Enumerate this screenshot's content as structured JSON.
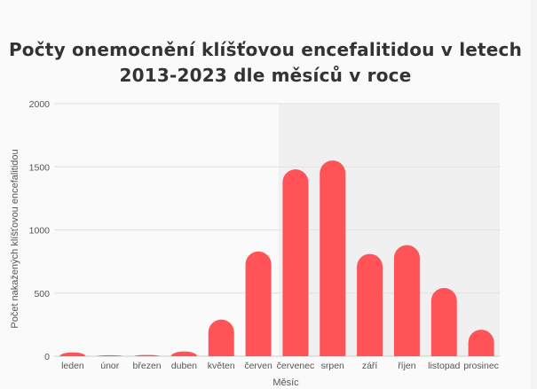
{
  "chart_data": {
    "type": "bar",
    "title_line1": "Počty onemocnění klíšťovou encefalitidou v letech",
    "title_line2": "2013-2023 dle měsíců v roce",
    "xlabel": "Měsíc",
    "ylabel": "Počet nakažených klíšťovou encefalitidou",
    "ylim": [
      0,
      2000
    ],
    "yticks": [
      "0",
      "500",
      "1000",
      "1500",
      "2000"
    ],
    "ytick_values": [
      0,
      500,
      1000,
      1500,
      2000
    ],
    "categories": [
      "leden",
      "únor",
      "březen",
      "duben",
      "květen",
      "červen",
      "červenec",
      "srpen",
      "září",
      "říjen",
      "listopad",
      "prosinec"
    ],
    "values": [
      30,
      8,
      10,
      38,
      290,
      830,
      1480,
      1550,
      810,
      880,
      540,
      210
    ],
    "grid": true,
    "legend": "none",
    "bar_color": "#ff5358",
    "highlight_band": [
      "červenec",
      "prosinec"
    ]
  }
}
